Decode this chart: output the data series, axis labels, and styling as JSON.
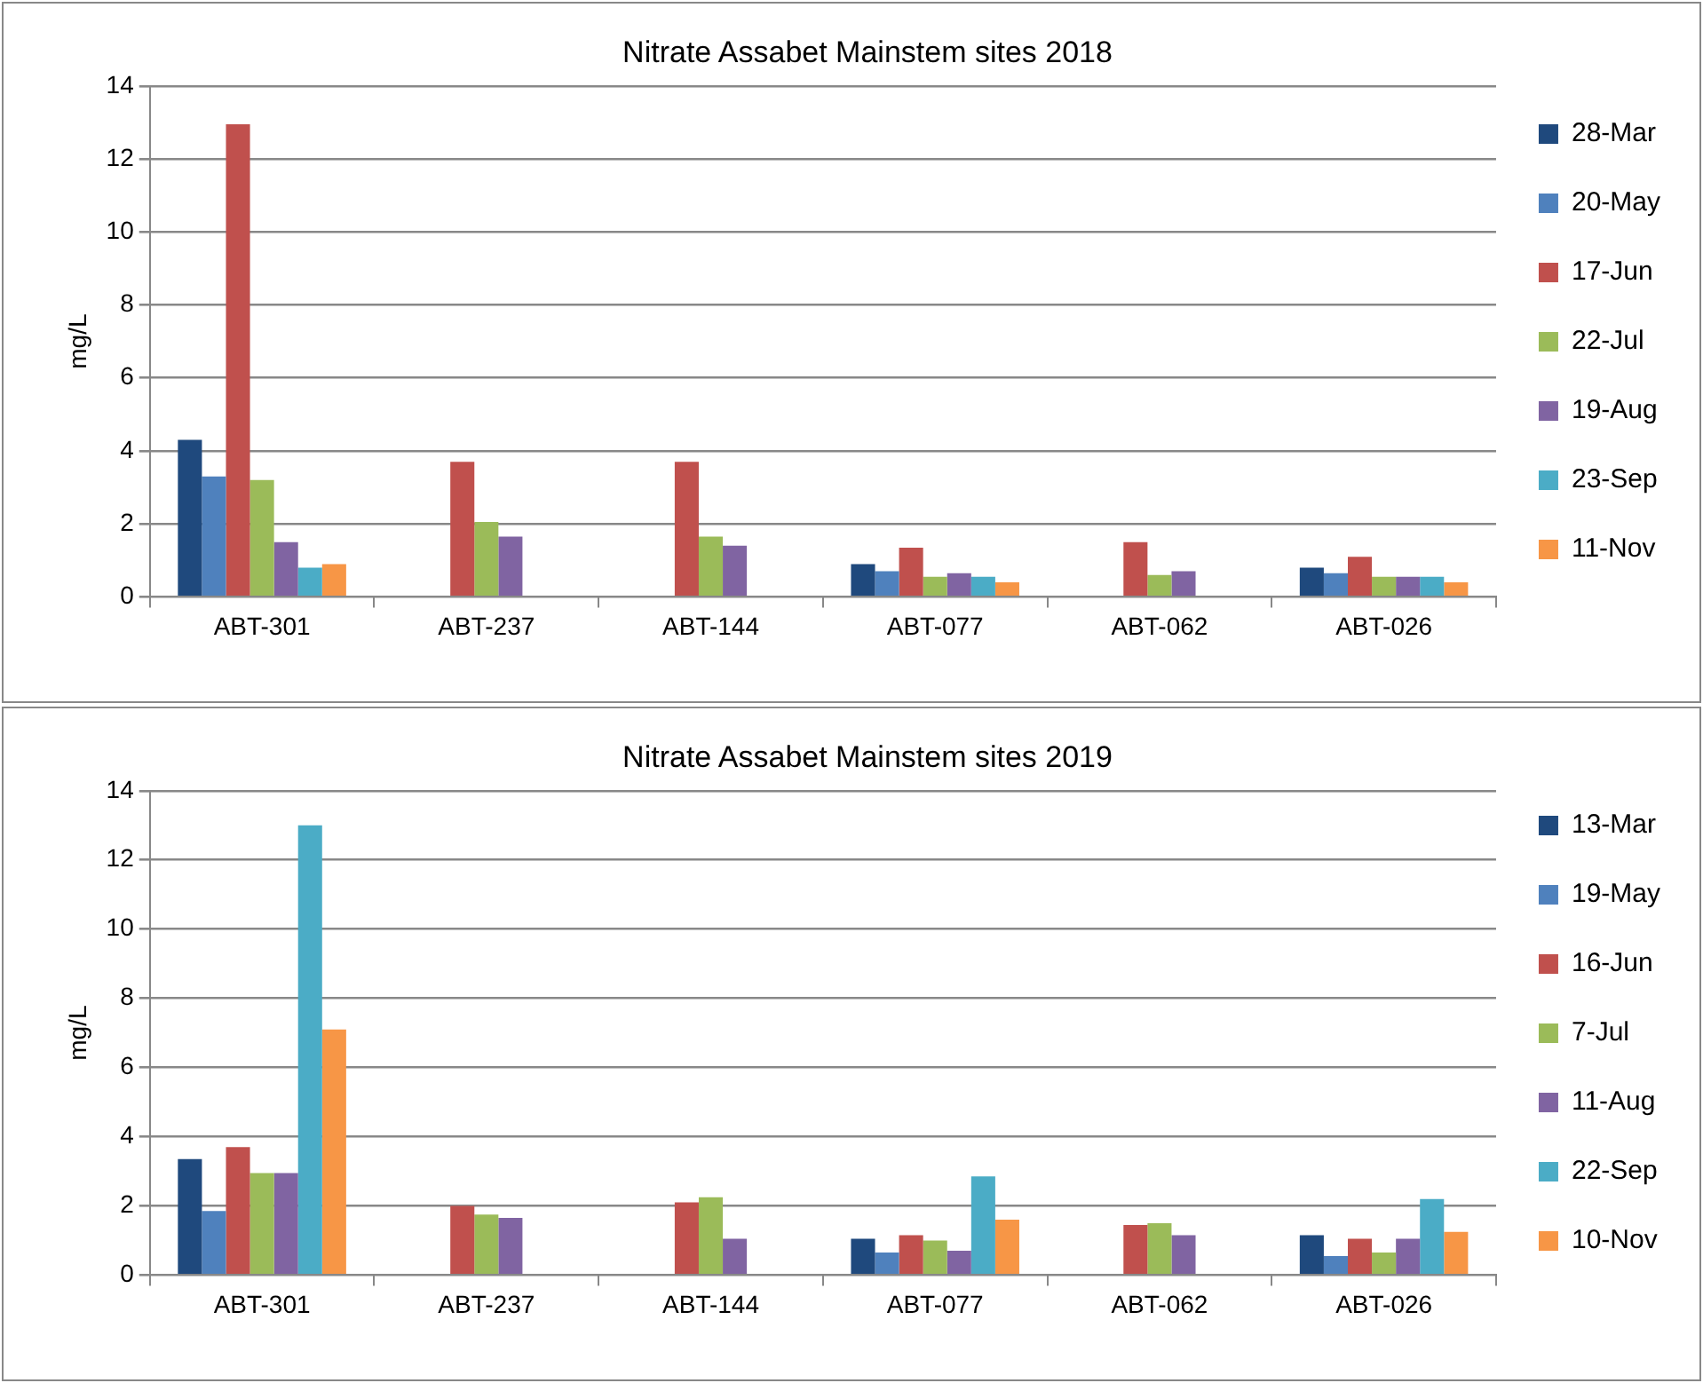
{
  "chart_data": [
    {
      "type": "bar",
      "title": "Nitrate Assabet Mainstem sites 2018",
      "ylabel": "mg/L",
      "categories": [
        "ABT-301",
        "ABT-237",
        "ABT-144",
        "ABT-077",
        "ABT-062",
        "ABT-026"
      ],
      "ylim": [
        0,
        14
      ],
      "yticks": [
        0,
        2,
        4,
        6,
        8,
        10,
        12,
        14
      ],
      "grid": "y",
      "legend": "right",
      "series": [
        {
          "name": "28-Mar",
          "color": "#1f497d",
          "values": [
            4.3,
            null,
            null,
            0.9,
            null,
            0.8
          ]
        },
        {
          "name": "20-May",
          "color": "#4f81bd",
          "values": [
            3.3,
            null,
            null,
            0.7,
            null,
            0.65
          ]
        },
        {
          "name": "17-Jun",
          "color": "#c0504d",
          "values": [
            12.95,
            3.7,
            3.7,
            1.35,
            1.5,
            1.1
          ]
        },
        {
          "name": "22-Jul",
          "color": "#9bbb59",
          "values": [
            3.2,
            2.05,
            1.65,
            0.55,
            0.6,
            0.55
          ]
        },
        {
          "name": "19-Aug",
          "color": "#8064a2",
          "values": [
            1.5,
            1.65,
            1.4,
            0.65,
            0.7,
            0.55
          ]
        },
        {
          "name": "23-Sep",
          "color": "#4bacc6",
          "values": [
            0.8,
            null,
            null,
            0.55,
            null,
            0.55
          ]
        },
        {
          "name": "11-Nov",
          "color": "#f79646",
          "values": [
            0.9,
            null,
            null,
            0.4,
            null,
            0.4
          ]
        }
      ]
    },
    {
      "type": "bar",
      "title": "Nitrate Assabet Mainstem sites 2019",
      "ylabel": "mg/L",
      "categories": [
        "ABT-301",
        "ABT-237",
        "ABT-144",
        "ABT-077",
        "ABT-062",
        "ABT-026"
      ],
      "ylim": [
        0,
        14
      ],
      "yticks": [
        0,
        2,
        4,
        6,
        8,
        10,
        12,
        14
      ],
      "grid": "y",
      "legend": "right",
      "series": [
        {
          "name": "13-Mar",
          "color": "#1f497d",
          "values": [
            3.35,
            null,
            null,
            1.05,
            null,
            1.15
          ]
        },
        {
          "name": "19-May",
          "color": "#4f81bd",
          "values": [
            1.85,
            null,
            null,
            0.65,
            null,
            0.55
          ]
        },
        {
          "name": "16-Jun",
          "color": "#c0504d",
          "values": [
            3.7,
            2.0,
            2.1,
            1.15,
            1.45,
            1.05
          ]
        },
        {
          "name": "7-Jul",
          "color": "#9bbb59",
          "values": [
            2.95,
            1.75,
            2.25,
            1.0,
            1.5,
            0.65
          ]
        },
        {
          "name": "11-Aug",
          "color": "#8064a2",
          "values": [
            2.95,
            1.65,
            1.05,
            0.7,
            1.15,
            1.05
          ]
        },
        {
          "name": "22-Sep",
          "color": "#4bacc6",
          "values": [
            13.0,
            null,
            null,
            2.85,
            null,
            2.2
          ]
        },
        {
          "name": "10-Nov",
          "color": "#f79646",
          "values": [
            7.1,
            null,
            null,
            1.6,
            null,
            1.25
          ]
        }
      ]
    }
  ]
}
